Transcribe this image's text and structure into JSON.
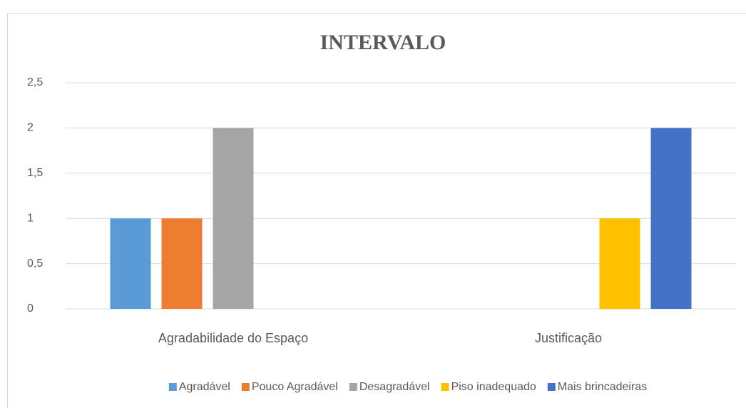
{
  "chart_data": {
    "type": "bar",
    "title": "INTERVALO",
    "categories": [
      "Agradabilidade do Espaço",
      "Justificação"
    ],
    "series": [
      {
        "name": "Agradável",
        "color": "#5b9bd5",
        "values": [
          1,
          null
        ]
      },
      {
        "name": "Pouco Agradável",
        "color": "#ed7d31",
        "values": [
          1,
          null
        ]
      },
      {
        "name": "Desagradável",
        "color": "#a5a5a5",
        "values": [
          2,
          null
        ]
      },
      {
        "name": "Piso inadequado",
        "color": "#ffc000",
        "values": [
          null,
          1
        ]
      },
      {
        "name": "Mais brincadeiras",
        "color": "#4472c4",
        "values": [
          null,
          2
        ]
      }
    ],
    "ylim": [
      0,
      2.5
    ],
    "yticks": [
      0,
      {
        "value": 0.5,
        "label": "0,5"
      },
      1,
      {
        "value": 1.5,
        "label": "1,5"
      },
      2,
      {
        "value": 2.5,
        "label": "2,5"
      }
    ],
    "grid": true,
    "legend": "bottom"
  }
}
